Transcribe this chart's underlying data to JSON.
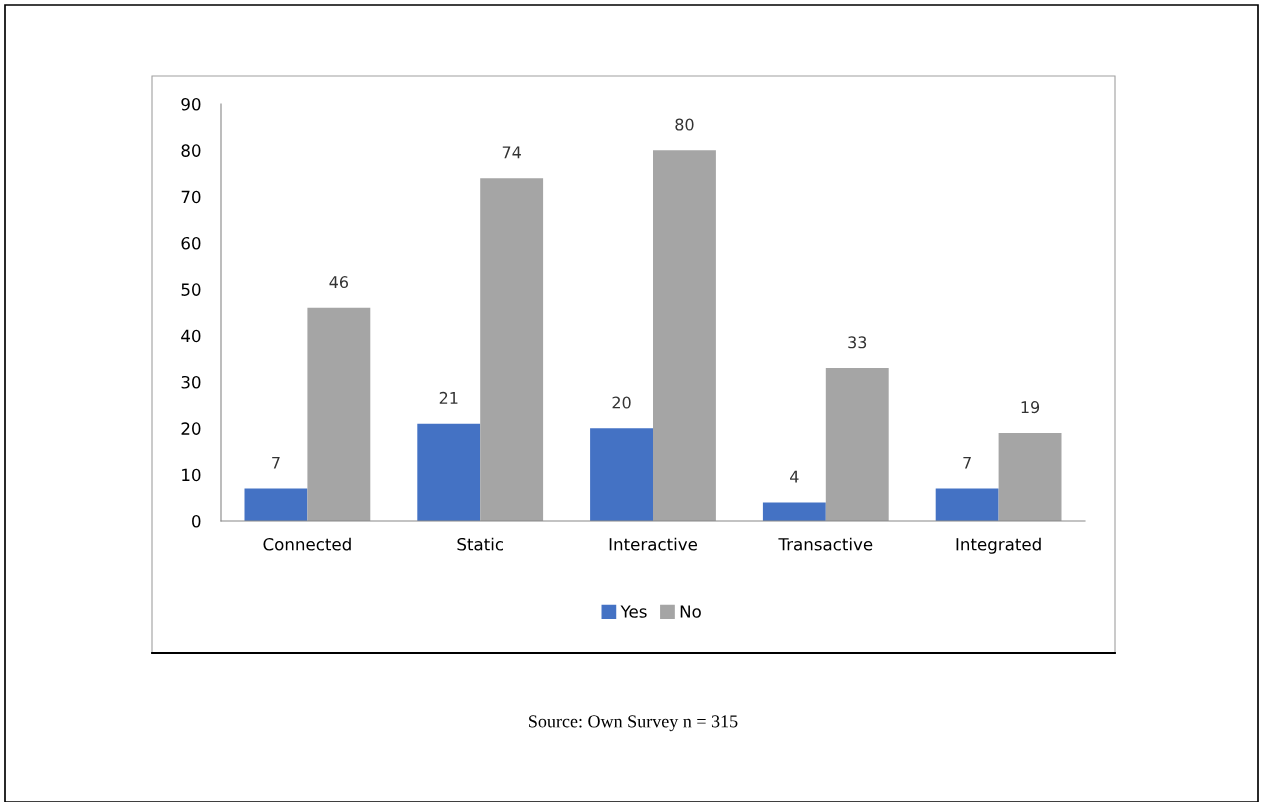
{
  "chart_data": {
    "type": "bar",
    "categories": [
      "Connected",
      "Static",
      "Interactive",
      "Transactive",
      "Integrated"
    ],
    "series": [
      {
        "name": "Yes",
        "color": "#4472c4",
        "values": [
          7,
          21,
          20,
          4,
          7
        ]
      },
      {
        "name": "No",
        "color": "#a5a5a5",
        "values": [
          46,
          74,
          80,
          33,
          19
        ]
      }
    ],
    "ylim": [
      0,
      90
    ],
    "yticks": [
      0,
      10,
      20,
      30,
      40,
      50,
      60,
      70,
      80,
      90
    ],
    "grid": false,
    "legend": "bottom",
    "data_labels": true,
    "annotations": [
      "Source: Own Survey n = 315"
    ]
  }
}
